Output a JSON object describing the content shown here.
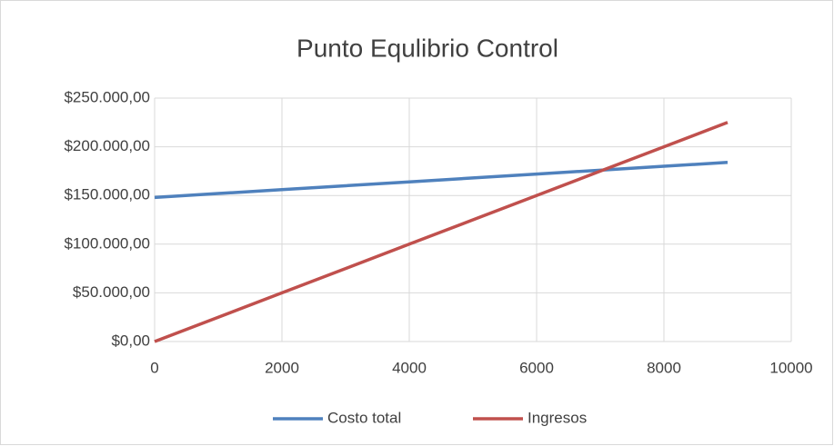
{
  "chart_data": {
    "type": "line",
    "title": "Punto Equlibrio Control",
    "x": [
      0,
      1000,
      2000,
      3000,
      4000,
      5000,
      6000,
      7000,
      8000,
      9000
    ],
    "series": [
      {
        "name": "Costo total",
        "color": "#4f81bd",
        "values": [
          148000,
          152000,
          156000,
          160000,
          164000,
          168000,
          172000,
          176000,
          180000,
          184000
        ]
      },
      {
        "name": "Ingresos",
        "color": "#c0504d",
        "values": [
          0,
          25000,
          50000,
          75000,
          100000,
          125000,
          150000,
          175000,
          200000,
          225000
        ]
      }
    ],
    "xlim": [
      0,
      10000
    ],
    "xticks": [
      0,
      2000,
      4000,
      6000,
      8000,
      10000
    ],
    "ylim": [
      0,
      250000
    ],
    "yticks": [
      {
        "value": 0,
        "label": "$0,00"
      },
      {
        "value": 50000,
        "label": "$50.000,00"
      },
      {
        "value": 100000,
        "label": "$100.000,00"
      },
      {
        "value": 150000,
        "label": "$150.000,00"
      },
      {
        "value": 200000,
        "label": "$200.000,00"
      },
      {
        "value": 250000,
        "label": "$250.000,00"
      }
    ],
    "grid": true,
    "legend": "bottom"
  }
}
